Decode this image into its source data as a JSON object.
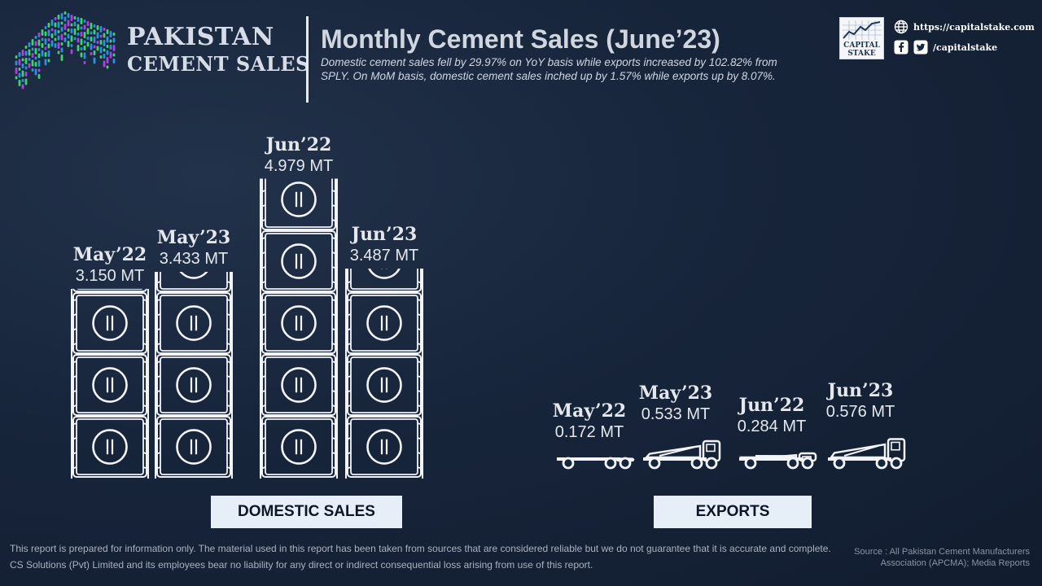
{
  "header": {
    "brand_line1": "PAKISTAN",
    "brand_line2": "CEMENT SALES",
    "title": "Monthly Cement Sales (June’23)",
    "subtitle": "Domestic cement sales fell by 29.97% on YoY basis while exports increased by 102.82% from SPLY. On MoM basis, domestic cement sales inched up by 1.57% while exports up by 8.07%."
  },
  "branding": {
    "logo_line1": "CAPITAL",
    "logo_line2": "STAKE",
    "website": "https://capitalstake.com",
    "social_handle": "/capitalstake",
    "icons": [
      "globe-icon",
      "facebook-icon",
      "twitter-icon"
    ]
  },
  "chart_data": [
    {
      "type": "bar",
      "label": "DOMESTIC SALES",
      "unit": "MT",
      "categories": [
        "May’22",
        "May’23",
        "Jun’22",
        "Jun’23"
      ],
      "values": [
        3.15,
        3.433,
        4.979,
        3.487
      ],
      "value_labels": [
        "3.150 MT",
        "3.433 MT",
        "4.979 MT",
        "3.487 MT"
      ]
    },
    {
      "type": "bar",
      "label": "EXPORTS",
      "unit": "MT",
      "categories": [
        "May’22",
        "May’23",
        "Jun’22",
        "Jun’23"
      ],
      "values": [
        0.172,
        0.533,
        0.284,
        0.576
      ],
      "value_labels": [
        "0.172 MT",
        "0.533 MT",
        "0.284 MT",
        "0.576 MT"
      ]
    }
  ],
  "footer": {
    "disclaimer_line1": "This report is prepared for information only. The material used in this report has been taken from sources that are considered reliable but we do not guarantee that it is accurate and complete.",
    "disclaimer_line2": "CS Solutions (Pvt) Limited and its employees bear no liability for any direct or indirect consequential loss arising from use of this report.",
    "source_line1": "Source : All Pakistan Cement Manufacturers",
    "source_line2": "Association (APCMA); Media Reports"
  },
  "colors": {
    "background": "#17253b",
    "icon_stroke": "#f2f4f7",
    "label_box": "#e6eef8",
    "logo_green": "#3fd36b",
    "logo_blue": "#2e8fe0",
    "logo_purple": "#b13fe6"
  }
}
